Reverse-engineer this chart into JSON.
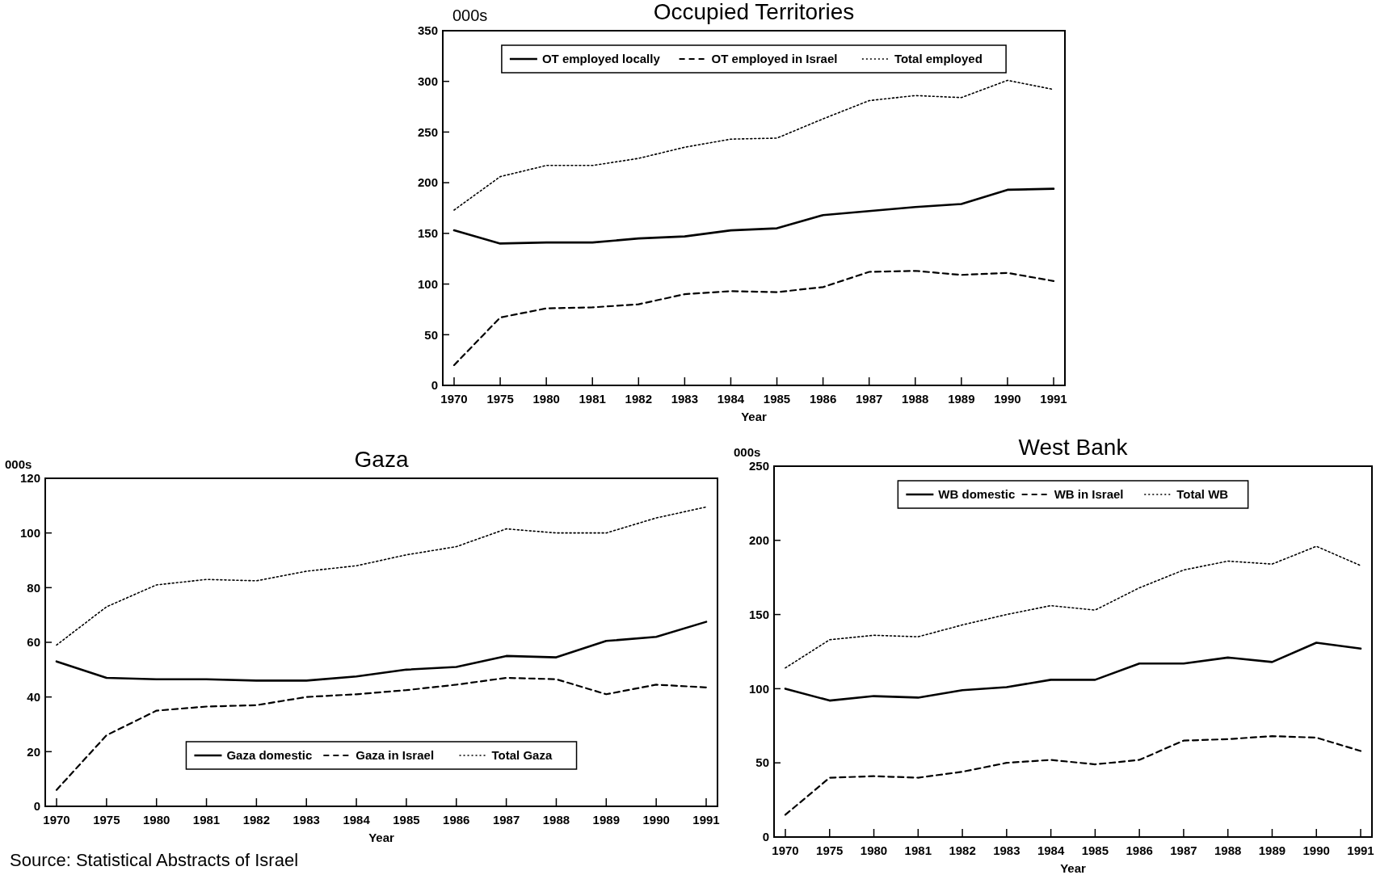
{
  "chart_data": [
    {
      "type": "line",
      "title": "Occupied Territories",
      "ylabel": "000s",
      "xlabel": "Year",
      "categories": [
        "1970",
        "1975",
        "1980",
        "1981",
        "1982",
        "1983",
        "1984",
        "1985",
        "1986",
        "1987",
        "1988",
        "1989",
        "1990",
        "1991"
      ],
      "ylim": [
        0,
        350
      ],
      "yticks": [
        0,
        50,
        100,
        150,
        200,
        250,
        300,
        350
      ],
      "grid": false,
      "legend": "top",
      "marker": "none",
      "series": [
        {
          "name": "OT employed locally",
          "color": "#000000",
          "line_style": "solid",
          "values": [
            153,
            140,
            141,
            141,
            145,
            147,
            153,
            155,
            168,
            172,
            176,
            179,
            193,
            194
          ]
        },
        {
          "name": "OT employed in Israel",
          "color": "#000000",
          "line_style": "dashed",
          "values": [
            20,
            67,
            76,
            77,
            80,
            90,
            93,
            92,
            97,
            112,
            113,
            109,
            111,
            103
          ]
        },
        {
          "name": "Total employed",
          "color": "#000000",
          "line_style": "dotted",
          "values": [
            173,
            206,
            217,
            217,
            224,
            235,
            243,
            244,
            263,
            281,
            286,
            284,
            301,
            292
          ]
        }
      ]
    },
    {
      "type": "line",
      "title": "Gaza",
      "ylabel": "000s",
      "xlabel": "Year",
      "categories": [
        "1970",
        "1975",
        "1980",
        "1981",
        "1982",
        "1983",
        "1984",
        "1985",
        "1986",
        "1987",
        "1988",
        "1989",
        "1990",
        "1991"
      ],
      "ylim": [
        0,
        120
      ],
      "yticks": [
        0,
        20,
        40,
        60,
        80,
        100,
        120
      ],
      "grid": false,
      "legend": "bottom",
      "marker": "none",
      "annotations": [
        "Source: Statistical Abstracts of Israel"
      ],
      "series": [
        {
          "name": "Gaza domestic",
          "color": "#000000",
          "line_style": "solid",
          "values": [
            53,
            47,
            46.5,
            46.5,
            46,
            46,
            47.5,
            50,
            51,
            55,
            54.5,
            60.5,
            62,
            67.5
          ]
        },
        {
          "name": "Gaza in Israel",
          "color": "#000000",
          "line_style": "dashed",
          "values": [
            6,
            26,
            35,
            36.5,
            37,
            40,
            41,
            42.5,
            44.5,
            47,
            46.5,
            41,
            44.5,
            43.5
          ]
        },
        {
          "name": "Total Gaza",
          "color": "#000000",
          "line_style": "dotted",
          "values": [
            59,
            73,
            81,
            83,
            82.5,
            86,
            88,
            92,
            95,
            101.5,
            100,
            100,
            105.5,
            109.5
          ]
        }
      ]
    },
    {
      "type": "line",
      "title": "West Bank",
      "ylabel": "000s",
      "xlabel": "Year",
      "categories": [
        "1970",
        "1975",
        "1980",
        "1981",
        "1982",
        "1983",
        "1984",
        "1985",
        "1986",
        "1987",
        "1988",
        "1989",
        "1990",
        "1991"
      ],
      "ylim": [
        0,
        250
      ],
      "yticks": [
        0,
        50,
        100,
        150,
        200,
        250
      ],
      "grid": false,
      "legend": "top",
      "marker": "none",
      "series": [
        {
          "name": "WB domestic",
          "color": "#000000",
          "line_style": "solid",
          "values": [
            100,
            92,
            95,
            94,
            99,
            101,
            106,
            106,
            117,
            117,
            121,
            118,
            131,
            127
          ]
        },
        {
          "name": "WB in Israel",
          "color": "#000000",
          "line_style": "dashed",
          "values": [
            15,
            40,
            41,
            40,
            44,
            50,
            52,
            49,
            52,
            65,
            66,
            68,
            67,
            58
          ]
        },
        {
          "name": "Total WB",
          "color": "#000000",
          "line_style": "dotted",
          "values": [
            114,
            133,
            136,
            135,
            143,
            150,
            156,
            153,
            168,
            180,
            186,
            184,
            196,
            183
          ]
        }
      ]
    }
  ]
}
